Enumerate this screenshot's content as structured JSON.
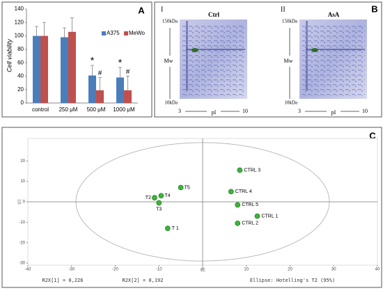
{
  "chart_data": [
    {
      "type": "bar",
      "label": "A",
      "y_label": "Cell viability",
      "categories": [
        "control",
        "250 μM",
        "500 μM",
        "1000 μM"
      ],
      "series": [
        {
          "name": "A375",
          "color": "#4a7ebb",
          "values": [
            100,
            98,
            41,
            38
          ],
          "errors": [
            14,
            14,
            15,
            15
          ],
          "significance": [
            null,
            null,
            "*",
            "*"
          ]
        },
        {
          "name": "MeWo",
          "color": "#c0504d",
          "values": [
            100,
            106,
            19,
            19
          ],
          "errors": [
            20,
            21,
            19,
            21
          ],
          "significance": [
            null,
            null,
            "#",
            "#"
          ]
        }
      ],
      "ylim": [
        0,
        140
      ],
      "yticks": [
        0,
        20,
        40,
        60,
        80,
        100,
        120,
        140
      ],
      "legend": "upper right"
    },
    {
      "type": "scatter",
      "label": "C",
      "x_label": "t[1]",
      "y_label": "t[2]",
      "color": "#3cb43c",
      "labels": [
        "CTRL 3",
        "CTRL 4",
        "CTRL 5",
        "CTRL 1",
        "CTRL 2",
        "T5",
        "T4",
        "T2",
        "T3",
        "T 1"
      ],
      "x": [
        8.5,
        6.5,
        8,
        12.5,
        8,
        -5,
        -9.5,
        -11,
        -10,
        -8
      ],
      "y": [
        15.5,
        5,
        -1.5,
        -7,
        -10.5,
        7,
        3,
        2,
        -0.5,
        -13
      ],
      "ellipse": [
        29,
        29
      ],
      "xlim": [
        -40,
        40
      ],
      "xticks": [
        -40,
        -30,
        -20,
        -10,
        0,
        10,
        20,
        30,
        40
      ],
      "ylim": [
        -31,
        31
      ],
      "yticks": [
        -30,
        -20,
        -10,
        0,
        10,
        20
      ],
      "footer": [
        "R2X[1] = 0,226",
        "R2X[2] = 0,192",
        "Ellipse: Hotelling's T2 (95%)"
      ]
    }
  ],
  "gel_panel": {
    "label": "B",
    "gels": [
      {
        "numeral": "I",
        "title": "Ctrl"
      },
      {
        "numeral": "II",
        "title": "AsA"
      }
    ],
    "mw_top": "150kDa",
    "mw_label": "Mw",
    "mw_bottom": "10kDa",
    "pi_left": "3",
    "pi_label": "pI",
    "pi_right": "10"
  }
}
